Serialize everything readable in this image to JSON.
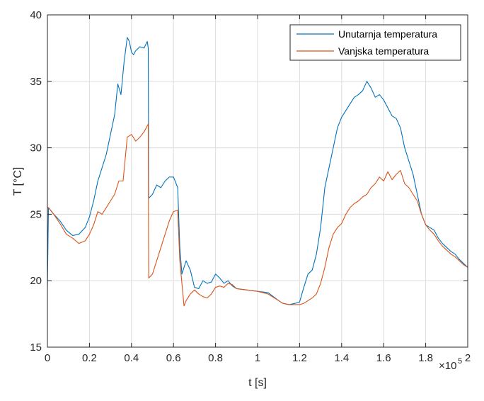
{
  "chart_data": {
    "type": "line",
    "xlabel": "t [s]",
    "ylabel": "T [°C]",
    "x_exponent_label": "×10",
    "x_exponent_power": "5",
    "xlim": [
      0,
      200000
    ],
    "ylim": [
      15,
      40
    ],
    "grid": true,
    "legend_position": "top-right",
    "x_ticks": [
      0,
      20000,
      40000,
      60000,
      80000,
      100000,
      120000,
      140000,
      160000,
      180000,
      200000
    ],
    "x_tick_labels": [
      "0",
      "0.2",
      "0.4",
      "0.6",
      "0.8",
      "1",
      "1.2",
      "1.4",
      "1.6",
      "1.8",
      "2"
    ],
    "y_ticks": [
      15,
      20,
      25,
      30,
      35,
      40
    ],
    "y_tick_labels": [
      "15",
      "20",
      "25",
      "30",
      "35",
      "40"
    ],
    "series": [
      {
        "name": "Unutarnja temperatura",
        "color": "#0072BD",
        "x": [
          0,
          500,
          3000,
          6000,
          9000,
          12000,
          15000,
          18000,
          20000,
          22000,
          24000,
          26000,
          28000,
          30000,
          32000,
          33500,
          35000,
          36500,
          38000,
          39000,
          40000,
          41000,
          42000,
          44000,
          46000,
          47500,
          48000,
          48200,
          50000,
          52000,
          54000,
          56000,
          58000,
          60000,
          62000,
          63000,
          64000,
          66000,
          68000,
          70000,
          72000,
          74000,
          76000,
          78000,
          80000,
          82000,
          84000,
          86000,
          88000,
          90000,
          95000,
          100000,
          105000,
          110000,
          112000,
          115000,
          118000,
          120000,
          122000,
          124000,
          126000,
          128000,
          130000,
          132000,
          134000,
          136000,
          138000,
          140000,
          142000,
          144000,
          146000,
          148000,
          150000,
          152000,
          154000,
          156000,
          158000,
          160000,
          162000,
          164000,
          166000,
          168000,
          170000,
          172000,
          174000,
          176000,
          178000,
          180000,
          182000,
          184000,
          186000,
          188000,
          190000,
          192000,
          194000,
          196000,
          198000,
          200000
        ],
        "y": [
          19.5,
          25.5,
          25.0,
          24.5,
          23.8,
          23.4,
          23.5,
          24.0,
          24.8,
          26.0,
          27.5,
          28.5,
          29.5,
          31.0,
          32.5,
          34.8,
          34.0,
          36.5,
          38.3,
          38.0,
          37.2,
          37.0,
          37.3,
          37.6,
          37.5,
          38.0,
          37.5,
          26.2,
          26.5,
          27.2,
          27.0,
          27.5,
          27.8,
          27.8,
          27.0,
          22.5,
          20.5,
          21.5,
          20.8,
          19.5,
          19.4,
          20.0,
          19.8,
          19.9,
          20.5,
          20.2,
          19.8,
          20.0,
          19.6,
          19.4,
          19.3,
          19.2,
          19.1,
          18.5,
          18.3,
          18.2,
          18.3,
          18.4,
          19.5,
          20.5,
          20.8,
          22.0,
          24.0,
          27.0,
          28.5,
          30.0,
          31.5,
          32.3,
          32.8,
          33.3,
          33.8,
          34.0,
          34.3,
          35.0,
          34.5,
          33.8,
          34.0,
          33.6,
          33.0,
          32.4,
          32.2,
          31.5,
          30.0,
          29.0,
          28.0,
          26.5,
          25.0,
          24.2,
          24.0,
          23.8,
          23.2,
          22.8,
          22.5,
          22.2,
          22.0,
          21.6,
          21.3,
          21.0
        ]
      },
      {
        "name": "Vanjska temperatura",
        "color": "#D95319",
        "x": [
          0,
          500,
          3000,
          6000,
          9000,
          12000,
          15000,
          18000,
          20000,
          22000,
          24000,
          26000,
          28000,
          30000,
          32000,
          34000,
          36000,
          38000,
          40000,
          42000,
          44000,
          46000,
          47000,
          48000,
          48200,
          50000,
          52000,
          54000,
          56000,
          58000,
          60000,
          62000,
          63000,
          65000,
          66000,
          68000,
          70000,
          72000,
          74000,
          76000,
          78000,
          80000,
          82000,
          84000,
          86000,
          88000,
          90000,
          95000,
          100000,
          105000,
          110000,
          112000,
          115000,
          118000,
          120000,
          122000,
          124000,
          126000,
          128000,
          130000,
          132000,
          134000,
          136000,
          138000,
          140000,
          142000,
          144000,
          146000,
          148000,
          150000,
          152000,
          154000,
          156000,
          158000,
          160000,
          162000,
          164000,
          166000,
          168000,
          170000,
          172000,
          174000,
          176000,
          178000,
          180000,
          182000,
          184000,
          186000,
          188000,
          190000,
          192000,
          194000,
          196000,
          198000,
          200000
        ],
        "y": [
          25.5,
          25.5,
          25.0,
          24.3,
          23.5,
          23.2,
          22.8,
          23.0,
          23.5,
          24.2,
          25.2,
          25.0,
          25.5,
          26.0,
          26.5,
          27.5,
          27.5,
          30.8,
          31.0,
          30.5,
          30.8,
          31.2,
          31.5,
          31.8,
          20.2,
          20.5,
          21.5,
          22.5,
          23.5,
          24.5,
          25.2,
          25.3,
          21.5,
          18.1,
          18.5,
          19.0,
          19.3,
          19.0,
          18.8,
          18.7,
          19.0,
          19.5,
          19.6,
          19.5,
          19.8,
          19.7,
          19.4,
          19.3,
          19.2,
          19.0,
          18.5,
          18.3,
          18.2,
          18.2,
          18.2,
          18.3,
          18.5,
          18.7,
          19.0,
          19.8,
          21.0,
          22.5,
          23.5,
          24.0,
          24.3,
          25.0,
          25.5,
          25.8,
          26.0,
          26.3,
          26.5,
          27.0,
          27.3,
          27.8,
          27.5,
          28.2,
          27.6,
          28.0,
          28.3,
          27.3,
          27.0,
          26.5,
          26.0,
          25.0,
          24.2,
          23.8,
          23.5,
          23.0,
          22.6,
          22.3,
          22.0,
          21.8,
          21.5,
          21.2,
          21.0
        ]
      }
    ]
  }
}
